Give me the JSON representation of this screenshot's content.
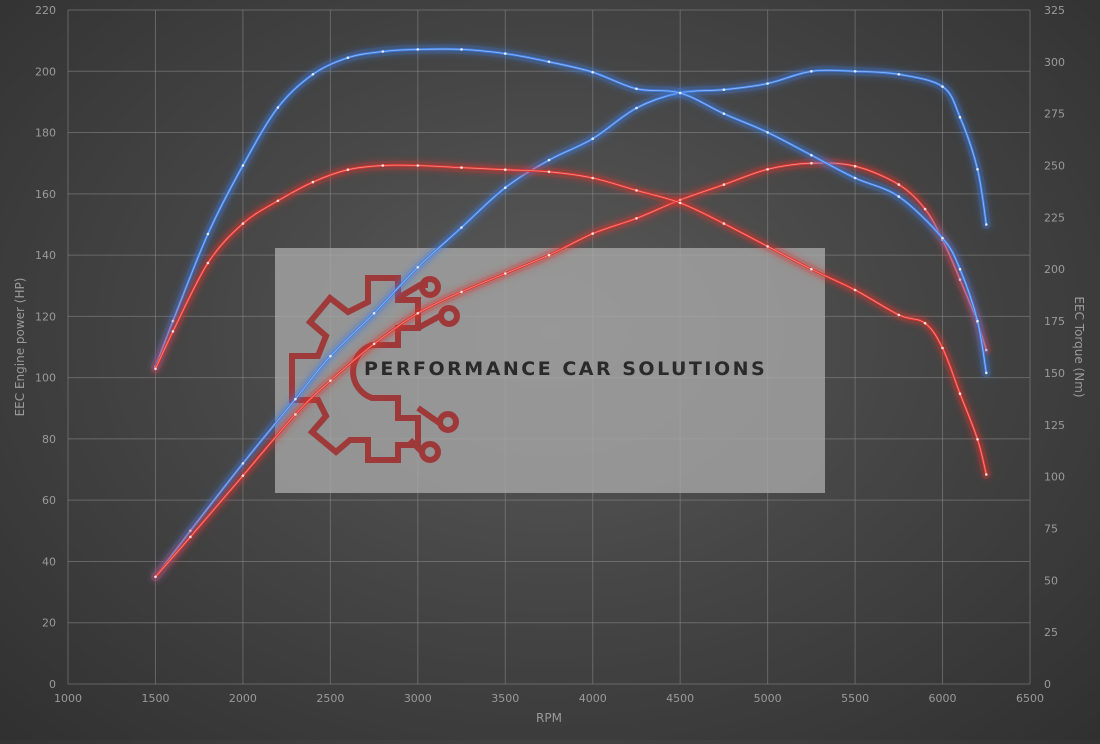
{
  "chart_data": {
    "type": "line",
    "title": "",
    "xlabel": "RPM",
    "ylabel_left": "EEC Engine power (HP)",
    "ylabel_right": "EEC Torque (Nm)",
    "xlim": [
      1000,
      6500
    ],
    "ylim_left": [
      0,
      220
    ],
    "ylim_right": [
      0,
      325
    ],
    "x_ticks": [
      1000,
      1500,
      2000,
      2500,
      3000,
      3500,
      4000,
      4500,
      5000,
      5500,
      6000,
      6500
    ],
    "y_left_ticks": [
      0,
      20,
      40,
      60,
      80,
      100,
      120,
      140,
      160,
      180,
      200,
      220
    ],
    "y_right_ticks": [
      0,
      25,
      50,
      75,
      100,
      125,
      150,
      175,
      200,
      225,
      250,
      275,
      300,
      325
    ],
    "grid": true,
    "legend": "none",
    "series": [
      {
        "color": "#3f7fe6",
        "axis": "left",
        "quantity": "power",
        "x": [
          1500,
          1700,
          2000,
          2300,
          2500,
          2750,
          3000,
          3250,
          3500,
          3750,
          4000,
          4250,
          4500,
          4750,
          5000,
          5250,
          5500,
          5750,
          6000,
          6100,
          6200,
          6250
        ],
        "y": [
          35,
          50,
          72,
          93,
          107,
          121,
          136,
          149,
          162,
          171,
          178,
          188,
          193,
          194,
          196,
          200,
          200,
          199,
          195,
          185,
          168,
          150
        ]
      },
      {
        "color": "#e0342e",
        "axis": "left",
        "quantity": "power",
        "x": [
          1500,
          1700,
          2000,
          2300,
          2500,
          2750,
          3000,
          3250,
          3500,
          3750,
          4000,
          4250,
          4500,
          4750,
          5000,
          5250,
          5500,
          5750,
          5900,
          6000,
          6100,
          6200,
          6250
        ],
        "y": [
          35,
          48,
          68,
          88,
          99,
          111,
          121,
          128,
          134,
          140,
          147,
          152,
          158,
          163,
          168,
          170,
          169,
          163,
          155,
          145,
          132,
          118,
          109
        ]
      },
      {
        "color": "#3f7fe6",
        "axis": "right",
        "quantity": "torque",
        "x": [
          1500,
          1600,
          1800,
          2000,
          2200,
          2400,
          2600,
          2800,
          3000,
          3250,
          3500,
          3750,
          4000,
          4250,
          4500,
          4750,
          5000,
          5250,
          5500,
          5750,
          6000,
          6100,
          6200,
          6250
        ],
        "y": [
          153,
          175,
          217,
          250,
          278,
          294,
          302,
          305,
          306,
          306,
          304,
          300,
          295,
          287,
          285,
          275,
          266,
          255,
          244,
          235,
          215,
          200,
          175,
          150
        ]
      },
      {
        "color": "#e0342e",
        "axis": "right",
        "quantity": "torque",
        "x": [
          1500,
          1600,
          1800,
          2000,
          2200,
          2400,
          2600,
          2800,
          3000,
          3250,
          3500,
          3750,
          4000,
          4250,
          4500,
          4750,
          5000,
          5250,
          5500,
          5750,
          5900,
          6000,
          6100,
          6200,
          6250
        ],
        "y": [
          152,
          170,
          203,
          222,
          233,
          242,
          248,
          250,
          250,
          249,
          248,
          247,
          244,
          238,
          232,
          222,
          211,
          200,
          190,
          178,
          174,
          162,
          140,
          118,
          101
        ]
      }
    ]
  },
  "watermark": {
    "text": "PERFORMANCE CAR SOLUTIONS",
    "logo": "gear-circuit-logo",
    "logo_color": "#a03030"
  }
}
